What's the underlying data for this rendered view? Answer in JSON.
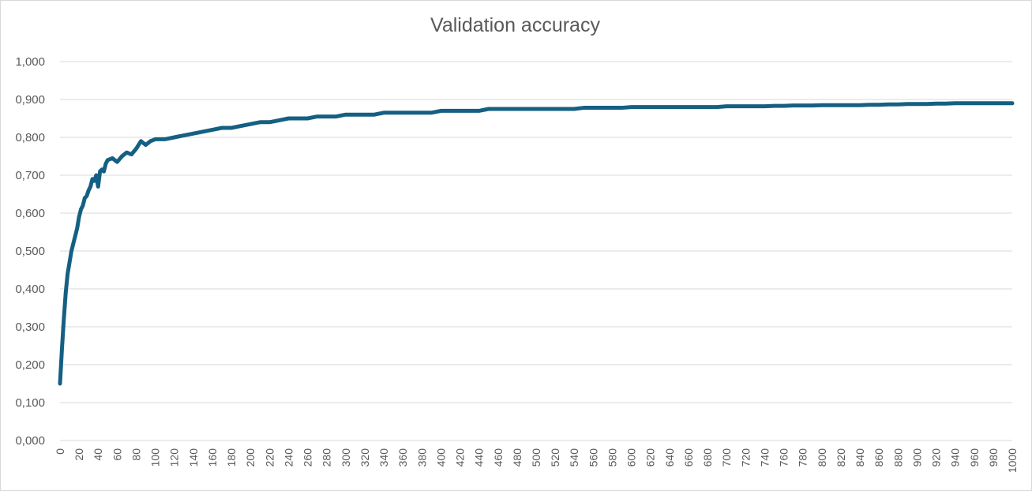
{
  "chart_data": {
    "type": "line",
    "title": "Validation accuracy",
    "xlabel": "",
    "ylabel": "",
    "xlim": [
      0,
      1000
    ],
    "ylim": [
      0,
      1
    ],
    "grid": true,
    "legend": "none",
    "line_color": "#156082",
    "yticks": [
      "0,000",
      "0,100",
      "0,200",
      "0,300",
      "0,400",
      "0,500",
      "0,600",
      "0,700",
      "0,800",
      "0,900",
      "1,000"
    ],
    "xticks": [
      "0",
      "20",
      "40",
      "60",
      "80",
      "100",
      "120",
      "140",
      "160",
      "180",
      "200",
      "220",
      "240",
      "260",
      "280",
      "300",
      "320",
      "340",
      "360",
      "380",
      "400",
      "420",
      "440",
      "460",
      "480",
      "500",
      "520",
      "540",
      "560",
      "580",
      "600",
      "620",
      "640",
      "660",
      "680",
      "700",
      "720",
      "740",
      "760",
      "780",
      "800",
      "820",
      "840",
      "860",
      "880",
      "900",
      "920",
      "940",
      "960",
      "980",
      "1000"
    ],
    "series": [
      {
        "x": [
          0,
          2,
          4,
          6,
          8,
          10,
          12,
          14,
          16,
          18,
          20,
          22,
          24,
          26,
          28,
          30,
          32,
          34,
          36,
          38,
          40,
          42,
          44,
          46,
          48,
          50,
          55,
          60,
          65,
          70,
          75,
          80,
          85,
          90,
          95,
          100,
          110,
          120,
          130,
          140,
          150,
          160,
          170,
          180,
          190,
          200,
          210,
          220,
          230,
          240,
          250,
          260,
          270,
          280,
          290,
          300,
          310,
          320,
          330,
          340,
          350,
          360,
          370,
          380,
          390,
          400,
          410,
          420,
          430,
          440,
          450,
          460,
          470,
          480,
          490,
          500,
          510,
          520,
          530,
          540,
          550,
          560,
          570,
          580,
          590,
          600,
          610,
          620,
          630,
          640,
          650,
          660,
          670,
          680,
          690,
          700,
          710,
          720,
          730,
          740,
          750,
          760,
          770,
          780,
          790,
          800,
          810,
          820,
          830,
          840,
          850,
          860,
          870,
          880,
          890,
          900,
          910,
          920,
          930,
          940,
          950,
          960,
          970,
          980,
          990,
          1000
        ],
        "y": [
          0.15,
          0.24,
          0.32,
          0.39,
          0.44,
          0.47,
          0.5,
          0.52,
          0.54,
          0.56,
          0.59,
          0.61,
          0.62,
          0.64,
          0.645,
          0.66,
          0.67,
          0.69,
          0.685,
          0.7,
          0.67,
          0.71,
          0.715,
          0.71,
          0.73,
          0.74,
          0.745,
          0.735,
          0.75,
          0.76,
          0.755,
          0.77,
          0.79,
          0.78,
          0.79,
          0.795,
          0.795,
          0.8,
          0.805,
          0.81,
          0.815,
          0.82,
          0.825,
          0.825,
          0.83,
          0.835,
          0.84,
          0.84,
          0.845,
          0.85,
          0.85,
          0.85,
          0.855,
          0.855,
          0.855,
          0.86,
          0.86,
          0.86,
          0.86,
          0.865,
          0.865,
          0.865,
          0.865,
          0.865,
          0.865,
          0.87,
          0.87,
          0.87,
          0.87,
          0.87,
          0.875,
          0.875,
          0.875,
          0.875,
          0.875,
          0.875,
          0.875,
          0.875,
          0.875,
          0.875,
          0.878,
          0.878,
          0.878,
          0.878,
          0.878,
          0.88,
          0.88,
          0.88,
          0.88,
          0.88,
          0.88,
          0.88,
          0.88,
          0.88,
          0.88,
          0.882,
          0.882,
          0.882,
          0.882,
          0.882,
          0.883,
          0.883,
          0.884,
          0.884,
          0.884,
          0.885,
          0.885,
          0.885,
          0.885,
          0.885,
          0.886,
          0.886,
          0.887,
          0.887,
          0.888,
          0.888,
          0.888,
          0.889,
          0.889,
          0.89,
          0.89,
          0.89,
          0.89,
          0.89,
          0.89,
          0.89
        ]
      }
    ]
  }
}
